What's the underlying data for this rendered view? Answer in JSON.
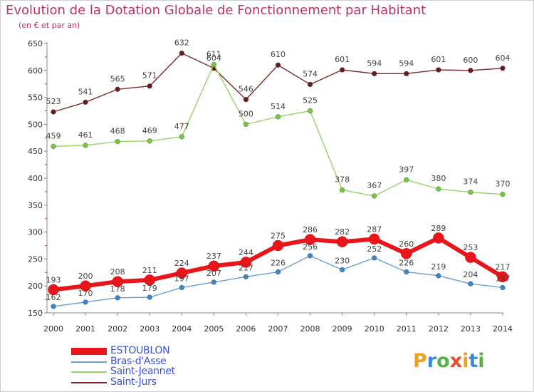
{
  "chart_data": {
    "type": "line",
    "title": "Evolution de la Dotation Globale de Fonctionnement par Habitant",
    "subtitle": "(en € et par an)",
    "x": [
      "2000",
      "2001",
      "2002",
      "2003",
      "2004",
      "2005",
      "2006",
      "2007",
      "2008",
      "2009",
      "2010",
      "2011",
      "2012",
      "2013",
      "2014"
    ],
    "ylim": [
      150,
      650
    ],
    "yticks": [
      150,
      200,
      250,
      300,
      350,
      400,
      450,
      500,
      550,
      600,
      650
    ],
    "grid": false,
    "legend_position": "bottom-left",
    "series": [
      {
        "name": "ESTOUBLON",
        "color": "#e8151b",
        "values": [
          193,
          200,
          208,
          211,
          224,
          237,
          244,
          275,
          286,
          282,
          287,
          260,
          289,
          253,
          217
        ]
      },
      {
        "name": "Bras-d'Asse",
        "color": "#6a9fd0",
        "values": [
          162,
          170,
          178,
          179,
          197,
          207,
          217,
          226,
          256,
          230,
          252,
          226,
          219,
          204,
          197
        ]
      },
      {
        "name": "Saint-Jeannet",
        "color": "#95d46a",
        "values": [
          459,
          461,
          468,
          469,
          477,
          611,
          500,
          514,
          525,
          378,
          367,
          397,
          380,
          374,
          370
        ]
      },
      {
        "name": "Saint-Jurs",
        "color": "#7a2a2e",
        "values": [
          523,
          541,
          565,
          571,
          632,
          604,
          546,
          610,
          574,
          601,
          594,
          594,
          601,
          600,
          604
        ]
      }
    ]
  },
  "logo": {
    "text": "Proxiti",
    "letters": [
      "P",
      "r",
      "o",
      "x",
      "i",
      "t",
      "i"
    ],
    "colors": [
      "#f0a020",
      "#3a8ad8",
      "#58b048",
      "#e84c2c",
      "#f0a020",
      "#3a8ad8",
      "#58b048"
    ]
  }
}
